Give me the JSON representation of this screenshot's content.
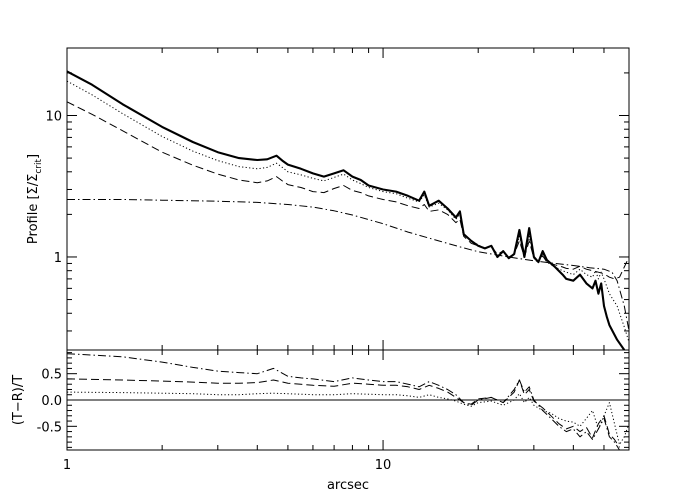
{
  "chart_data": [
    {
      "type": "line",
      "panel": "top",
      "title": "",
      "xlabel": "",
      "ylabel": "Profile [Σ/Σ_crit]",
      "ylabel_main": "Profile [Σ/Σ",
      "ylabel_sub": "crit",
      "ylabel_tail": "]",
      "xscale": "log",
      "yscale": "log",
      "xlim": [
        1,
        60
      ],
      "ylim": [
        0.22,
        30
      ],
      "yticks": [
        {
          "value": 1,
          "label": "1"
        },
        {
          "value": 10,
          "label": "10"
        }
      ],
      "grid": false,
      "legend": "none",
      "series": [
        {
          "style": "solid-thick",
          "x": [
            1.0,
            1.2,
            1.5,
            2.0,
            2.5,
            3.0,
            3.5,
            4.0,
            4.3,
            4.6,
            4.8,
            5.0,
            5.5,
            6.0,
            6.5,
            7.0,
            7.5,
            8.0,
            8.5,
            9.0,
            10.0,
            11.0,
            12.0,
            13.0,
            13.5,
            14.0,
            15.0,
            16.0,
            17.0,
            17.5,
            18.0,
            19.0,
            20.0,
            21.0,
            22.0,
            23.0,
            24.0,
            25.0,
            26.0,
            27.0,
            28.0,
            29.0,
            30.0,
            31.0,
            32.0,
            33.0,
            35.0,
            37.0,
            38.0,
            40.0,
            42.0,
            44.0,
            46.0,
            47.0,
            48.0,
            49.0,
            50.0,
            51.0,
            52.0,
            55.0,
            58.0
          ],
          "y": [
            20.5,
            16.5,
            12.0,
            8.3,
            6.5,
            5.5,
            5.0,
            4.85,
            4.9,
            5.2,
            4.8,
            4.5,
            4.2,
            3.9,
            3.7,
            3.9,
            4.1,
            3.7,
            3.5,
            3.2,
            3.0,
            2.9,
            2.7,
            2.5,
            2.9,
            2.3,
            2.5,
            2.2,
            1.9,
            2.1,
            1.45,
            1.3,
            1.2,
            1.15,
            1.2,
            1.0,
            1.1,
            0.98,
            1.05,
            1.55,
            1.0,
            1.6,
            1.0,
            0.92,
            1.1,
            0.95,
            0.85,
            0.75,
            0.7,
            0.68,
            0.75,
            0.65,
            0.6,
            0.68,
            0.55,
            0.65,
            0.45,
            0.38,
            0.33,
            0.26,
            0.22
          ]
        },
        {
          "style": "dotted",
          "x": [
            1.0,
            1.2,
            1.5,
            2.0,
            2.5,
            3.0,
            3.5,
            4.0,
            4.3,
            4.6,
            4.8,
            5.0,
            5.5,
            6.0,
            6.5,
            7.0,
            7.5,
            8.0,
            8.5,
            9.0,
            10.0,
            11.0,
            12.0,
            13.0,
            13.5,
            14.0,
            15.0,
            16.0,
            17.0,
            17.5,
            18.0,
            19.0,
            20.0,
            21.0,
            22.0,
            23.0,
            24.0,
            25.0,
            26.0,
            27.0,
            28.0,
            29.0,
            30.0,
            31.0,
            32.0,
            33.0,
            35.0,
            37.0,
            38.0,
            40.0,
            42.0,
            44.0,
            46.0,
            47.0,
            48.0,
            49.0,
            50.0,
            51.0,
            52.0,
            55.0,
            58.0,
            60.0
          ],
          "y": [
            17.5,
            14.0,
            10.3,
            7.1,
            5.6,
            4.8,
            4.35,
            4.2,
            4.3,
            4.6,
            4.3,
            4.0,
            3.8,
            3.6,
            3.45,
            3.65,
            3.85,
            3.5,
            3.3,
            3.1,
            2.9,
            2.8,
            2.6,
            2.45,
            2.75,
            2.25,
            2.4,
            2.15,
            1.85,
            2.0,
            1.45,
            1.3,
            1.22,
            1.15,
            1.2,
            1.02,
            1.1,
            0.98,
            1.05,
            1.4,
            1.0,
            1.4,
            0.98,
            0.92,
            1.05,
            0.92,
            0.85,
            0.8,
            0.78,
            0.75,
            0.82,
            0.75,
            0.72,
            0.8,
            0.7,
            0.78,
            0.7,
            0.62,
            0.55,
            0.45,
            0.32,
            0.25
          ]
        },
        {
          "style": "dashed",
          "x": [
            1.0,
            1.2,
            1.5,
            2.0,
            2.5,
            3.0,
            3.5,
            4.0,
            4.3,
            4.6,
            4.8,
            5.0,
            5.5,
            6.0,
            6.5,
            7.0,
            7.5,
            8.0,
            8.5,
            9.0,
            10.0,
            11.0,
            12.0,
            13.0,
            13.5,
            14.0,
            15.0,
            16.0,
            17.0,
            17.5,
            18.0,
            19.0,
            20.0,
            21.0,
            22.0,
            23.0,
            24.0,
            25.0,
            26.0,
            27.0,
            28.0,
            29.0,
            30.0,
            31.0,
            32.0,
            33.0,
            35.0,
            37.0,
            38.0,
            40.0,
            42.0,
            44.0,
            46.0,
            48.0,
            50.0,
            52.0,
            54.0,
            56.0,
            58.0,
            60.0
          ],
          "y": [
            12.5,
            10.2,
            7.8,
            5.5,
            4.45,
            3.85,
            3.5,
            3.35,
            3.45,
            3.7,
            3.45,
            3.25,
            3.1,
            2.9,
            2.85,
            3.05,
            3.2,
            2.95,
            2.85,
            2.7,
            2.55,
            2.45,
            2.3,
            2.2,
            2.35,
            2.1,
            2.15,
            2.0,
            1.75,
            1.85,
            1.4,
            1.25,
            1.2,
            1.15,
            1.18,
            1.05,
            1.1,
            1.0,
            1.05,
            1.3,
            1.0,
            1.3,
            0.98,
            0.92,
            1.02,
            0.92,
            0.88,
            0.85,
            0.83,
            0.82,
            0.86,
            0.82,
            0.8,
            0.78,
            0.76,
            0.72,
            0.7,
            0.72,
            0.85,
            1.0
          ]
        },
        {
          "style": "dash-dot",
          "x": [
            1.0,
            1.5,
            2.0,
            3.0,
            4.0,
            5.0,
            6.0,
            7.0,
            8.0,
            10.0,
            12.0,
            15.0,
            18.0,
            20.0,
            25.0,
            30.0,
            35.0,
            40.0,
            45.0,
            50.0,
            53.0,
            55.0,
            58.0,
            60.0
          ],
          "y": [
            2.55,
            2.55,
            2.52,
            2.48,
            2.43,
            2.35,
            2.25,
            2.12,
            1.98,
            1.72,
            1.5,
            1.3,
            1.16,
            1.09,
            1.0,
            0.94,
            0.9,
            0.87,
            0.84,
            0.82,
            0.78,
            0.68,
            0.45,
            0.3
          ]
        }
      ]
    },
    {
      "type": "line",
      "panel": "bottom",
      "title": "",
      "xlabel": "arcsec",
      "ylabel": "(T−R)/T",
      "xscale": "log",
      "yscale": "linear",
      "xlim": [
        1,
        60
      ],
      "ylim": [
        -0.95,
        0.95
      ],
      "xticks": [
        {
          "value": 1,
          "label": "1"
        },
        {
          "value": 10,
          "label": "10"
        }
      ],
      "yticks": [
        {
          "value": 0.5,
          "label": "0.5"
        },
        {
          "value": 0.0,
          "label": "0.0"
        },
        {
          "value": -0.5,
          "label": "-0.5"
        }
      ],
      "hlines": [
        0.0
      ],
      "grid": false,
      "legend": "none",
      "series": [
        {
          "style": "dash-dot",
          "x": [
            1.0,
            1.5,
            2.0,
            2.5,
            3.0,
            3.5,
            4.0,
            4.5,
            5.0,
            5.5,
            6.0,
            7.0,
            8.0,
            9.0,
            10.0,
            11.0,
            12.0,
            13.0,
            14.0,
            15.0,
            16.0,
            17.0,
            18.0,
            19.0,
            20.0,
            22.0,
            24.0,
            26.0,
            27.0,
            28.0,
            29.0,
            30.0,
            32.0,
            34.0,
            36.0,
            38.0,
            40.0,
            42.0,
            44.0,
            46.0,
            48.0,
            50.0,
            52.0,
            54.0,
            56.0
          ],
          "y": [
            0.88,
            0.82,
            0.72,
            0.62,
            0.55,
            0.52,
            0.5,
            0.6,
            0.45,
            0.42,
            0.4,
            0.35,
            0.42,
            0.38,
            0.35,
            0.35,
            0.3,
            0.25,
            0.35,
            0.28,
            0.2,
            0.1,
            -0.05,
            -0.1,
            0.0,
            0.05,
            -0.05,
            0.2,
            0.38,
            0.15,
            0.25,
            0.0,
            -0.2,
            -0.35,
            -0.5,
            -0.6,
            -0.55,
            -0.7,
            -0.6,
            -0.75,
            -0.55,
            -0.35,
            -0.7,
            -0.8,
            -0.95
          ]
        },
        {
          "style": "dashed",
          "x": [
            1.0,
            1.5,
            2.0,
            2.5,
            3.0,
            3.5,
            4.0,
            4.5,
            5.0,
            5.5,
            6.0,
            7.0,
            8.0,
            9.0,
            10.0,
            11.0,
            12.0,
            13.0,
            14.0,
            15.0,
            16.0,
            17.0,
            18.0,
            19.0,
            20.0,
            22.0,
            24.0,
            26.0,
            27.0,
            28.0,
            29.0,
            30.0,
            32.0,
            34.0,
            36.0,
            38.0,
            40.0,
            42.0,
            44.0,
            46.0,
            48.0,
            50.0,
            52.0,
            54.0,
            56.0
          ],
          "y": [
            0.4,
            0.38,
            0.36,
            0.34,
            0.32,
            0.32,
            0.33,
            0.38,
            0.32,
            0.3,
            0.28,
            0.26,
            0.32,
            0.3,
            0.28,
            0.28,
            0.25,
            0.2,
            0.28,
            0.22,
            0.15,
            0.05,
            -0.05,
            -0.08,
            0.02,
            0.05,
            -0.05,
            0.15,
            0.38,
            0.1,
            0.2,
            -0.02,
            -0.15,
            -0.3,
            -0.45,
            -0.55,
            -0.5,
            -0.6,
            -0.52,
            -0.72,
            -0.45,
            -0.3,
            -0.65,
            -0.75,
            -0.9
          ]
        },
        {
          "style": "dotted",
          "x": [
            1.0,
            1.5,
            2.0,
            2.5,
            3.0,
            3.5,
            4.0,
            4.5,
            5.0,
            5.5,
            6.0,
            7.0,
            8.0,
            9.0,
            10.0,
            11.0,
            12.0,
            13.0,
            14.0,
            15.0,
            16.0,
            17.0,
            18.0,
            19.0,
            20.0,
            22.0,
            24.0,
            26.0,
            27.0,
            28.0,
            29.0,
            30.0,
            32.0,
            34.0,
            36.0,
            38.0,
            40.0,
            42.0,
            44.0,
            46.0,
            48.0,
            50.0,
            52.0,
            54.0,
            56.0,
            58.0,
            60.0
          ],
          "y": [
            0.15,
            0.14,
            0.13,
            0.12,
            0.1,
            0.1,
            0.12,
            0.13,
            0.12,
            0.11,
            0.1,
            0.1,
            0.12,
            0.11,
            0.1,
            0.1,
            0.08,
            0.05,
            0.1,
            0.05,
            0.02,
            -0.02,
            -0.08,
            -0.12,
            -0.05,
            -0.02,
            -0.1,
            0.0,
            0.12,
            -0.05,
            0.05,
            -0.1,
            -0.2,
            -0.25,
            -0.35,
            -0.4,
            -0.42,
            -0.5,
            -0.35,
            -0.2,
            -0.55,
            -0.3,
            -0.05,
            -0.45,
            -0.85,
            -0.7,
            -0.45
          ]
        }
      ]
    }
  ]
}
